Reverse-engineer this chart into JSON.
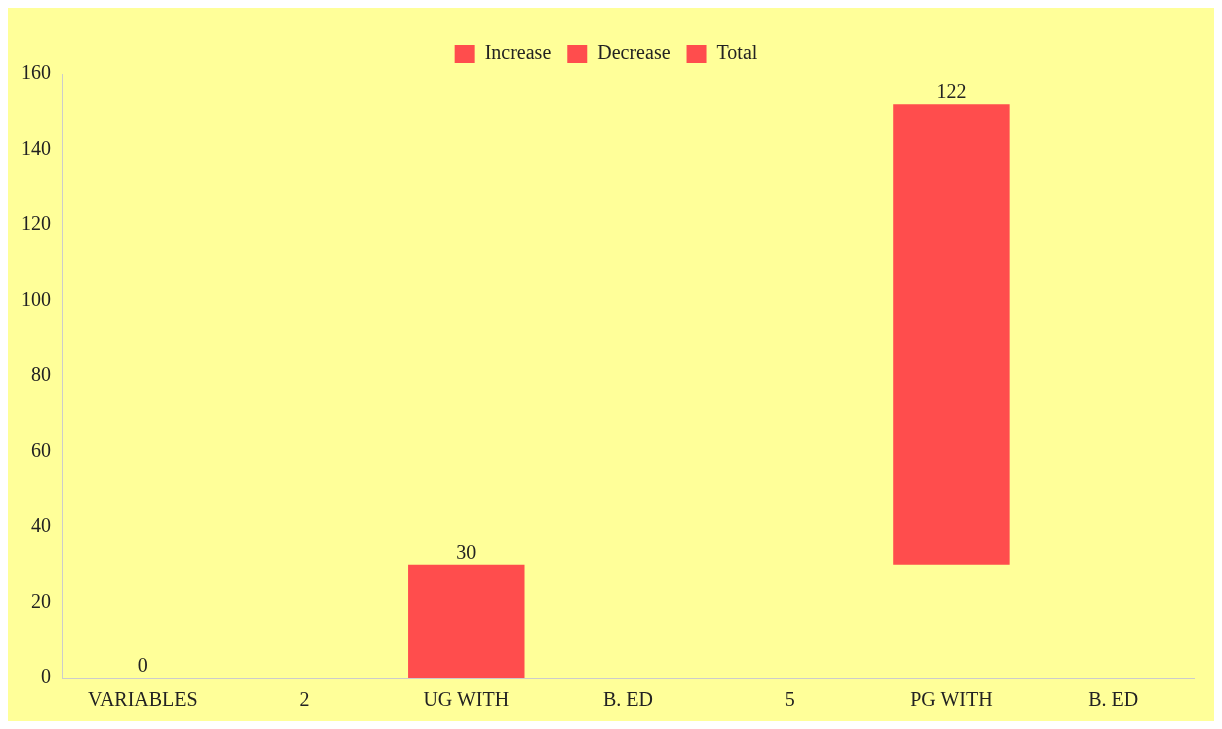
{
  "chart_data": {
    "type": "bar",
    "categories": [
      "VARIABLES",
      "2",
      "UG WITH",
      "B. ED",
      "5",
      "PG WITH",
      "B. ED"
    ],
    "series": [
      {
        "name": "Increase",
        "color": "#ff4d4d",
        "values": [
          0,
          null,
          30,
          null,
          null,
          122,
          null
        ],
        "base": [
          null,
          null,
          0,
          null,
          null,
          30,
          null
        ]
      },
      {
        "name": "Decrease",
        "color": "#ff4d4d",
        "values": [
          null,
          null,
          null,
          null,
          null,
          null,
          null
        ]
      },
      {
        "name": "Total",
        "color": "#ff4d4d",
        "values": [
          null,
          null,
          null,
          null,
          null,
          null,
          null
        ]
      }
    ],
    "ylim": [
      0,
      160
    ],
    "yticks": [
      0,
      20,
      40,
      60,
      80,
      100,
      120,
      140,
      160
    ],
    "grid": false,
    "legend": "top",
    "data_labels": true
  }
}
